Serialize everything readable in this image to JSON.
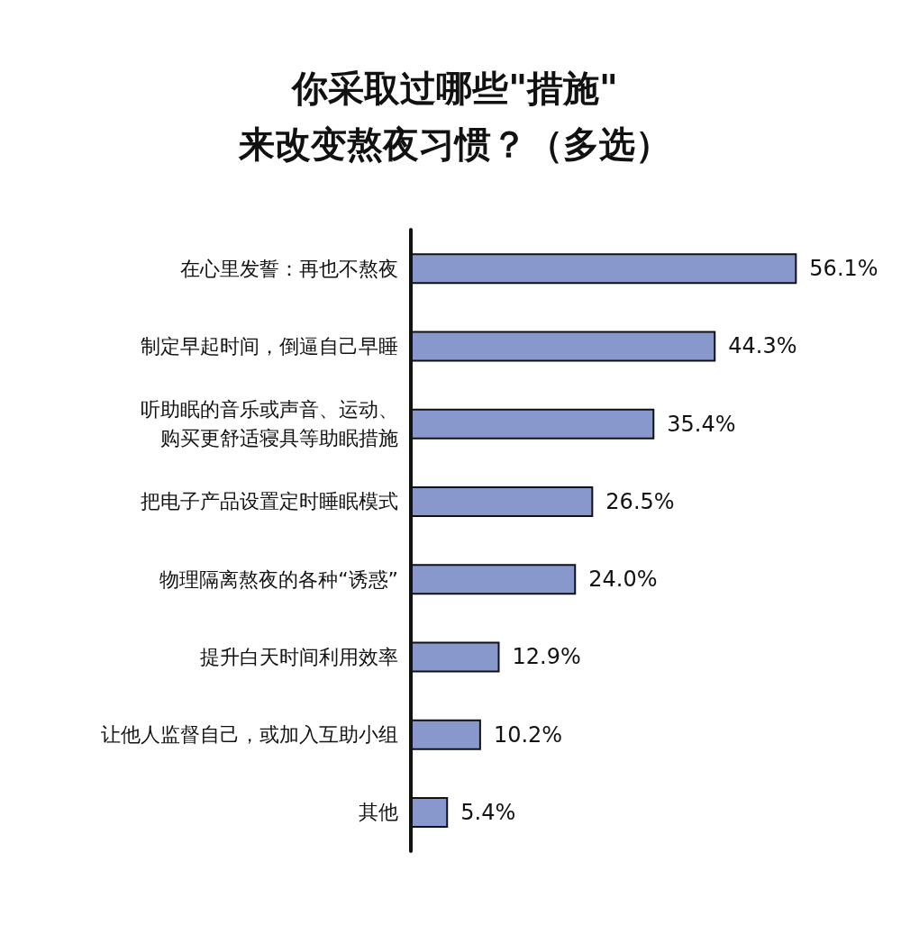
{
  "chart_data": {
    "type": "bar",
    "orientation": "horizontal",
    "title": "你采取过哪些\"措施\"\n来改变熬夜习惯？（多选）",
    "categories": [
      "在心里发誓：再也不熬夜",
      "制定早起时间，倒逼自己早睡",
      "听助眠的音乐或声音、运动、购买更舒适寝具等助眠措施",
      "把电子产品设置定时睡眠模式",
      "物理隔离熬夜的各种“诱惑”",
      "提升白天时间利用效率",
      "让他人监督自己，或加入互助小组",
      "其他"
    ],
    "values": [
      56.1,
      44.3,
      35.4,
      26.5,
      24.0,
      12.9,
      10.2,
      5.4
    ],
    "value_labels": [
      "56.1%",
      "44.3%",
      "35.4%",
      "26.5%",
      "24.0%",
      "12.9%",
      "10.2%",
      "5.4%"
    ],
    "color": "#8898cc"
  }
}
